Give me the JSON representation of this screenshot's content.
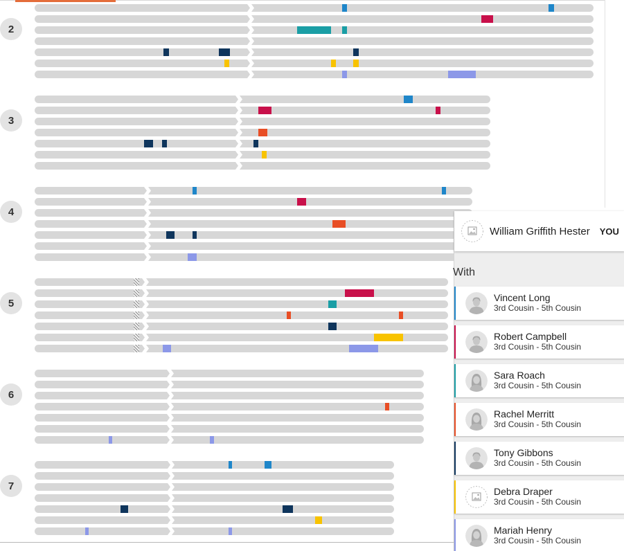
{
  "colors": {
    "segment_blue": "#1f86c9",
    "segment_crimson": "#c8104a",
    "segment_teal": "#1a9ea5",
    "segment_navy": "#0f355c",
    "segment_yellow": "#f8c300",
    "segment_lavender": "#8c98e8",
    "segment_orange": "#e84e25"
  },
  "chromosomes": [
    {
      "label": "2"
    },
    {
      "label": "3"
    },
    {
      "label": "4"
    },
    {
      "label": "5"
    },
    {
      "label": "6"
    },
    {
      "label": "7"
    }
  ],
  "sidebar": {
    "you": {
      "name": "William Griffith Hester",
      "badge": "YOU",
      "icon": "photo-placeholder-icon"
    },
    "with_label": "With",
    "matches": [
      {
        "name": "Vincent Long",
        "relation": "3rd Cousin - 5th Cousin",
        "icon": "male-avatar-icon",
        "color": "#1f86c9"
      },
      {
        "name": "Robert Campbell",
        "relation": "3rd Cousin - 5th Cousin",
        "icon": "male-avatar-icon",
        "color": "#c8104a"
      },
      {
        "name": "Sara Roach",
        "relation": "3rd Cousin - 5th Cousin",
        "icon": "female-avatar-icon",
        "color": "#1a9ea5"
      },
      {
        "name": "Rachel Merritt",
        "relation": "3rd Cousin - 5th Cousin",
        "icon": "female-avatar-icon",
        "color": "#e84e25"
      },
      {
        "name": "Tony Gibbons",
        "relation": "3rd Cousin - 5th Cousin",
        "icon": "male-avatar-icon",
        "color": "#0f355c"
      },
      {
        "name": "Debra Draper",
        "relation": "3rd Cousin - 5th Cousin",
        "icon": "photo-placeholder-icon",
        "color": "#f8c300"
      },
      {
        "name": "Mariah Henry",
        "relation": "3rd Cousin - 5th Cousin",
        "icon": "female-avatar-icon",
        "color": "#8c98e8"
      }
    ]
  }
}
